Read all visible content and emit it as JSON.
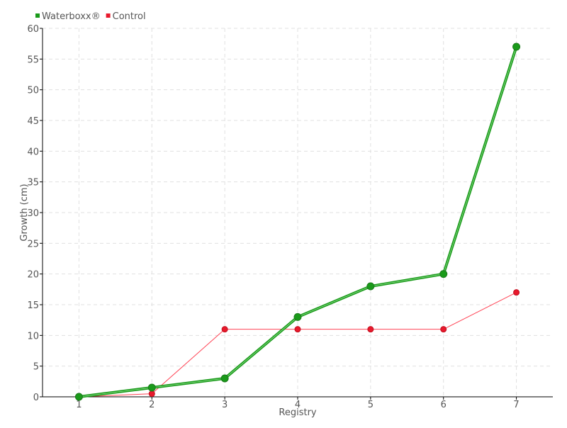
{
  "chart_data": {
    "type": "line",
    "title": "",
    "xlabel": "Registry",
    "ylabel": "Growth (cm)",
    "x": [
      1,
      2,
      3,
      4,
      5,
      6,
      7
    ],
    "xlim": [
      0.5,
      7.5
    ],
    "ylim": [
      0,
      60
    ],
    "yticks": [
      0,
      5,
      10,
      15,
      20,
      25,
      30,
      35,
      40,
      45,
      50,
      55,
      60
    ],
    "grid": true,
    "legend": "top-left",
    "series": [
      {
        "name": "Waterboxx®",
        "color": "#1a9a1a",
        "values": [
          0,
          1.5,
          3,
          13,
          18,
          20,
          57
        ]
      },
      {
        "name": "Control",
        "color": "#e8192c",
        "values": [
          0,
          0.5,
          11,
          11,
          11,
          11,
          17
        ]
      }
    ]
  }
}
